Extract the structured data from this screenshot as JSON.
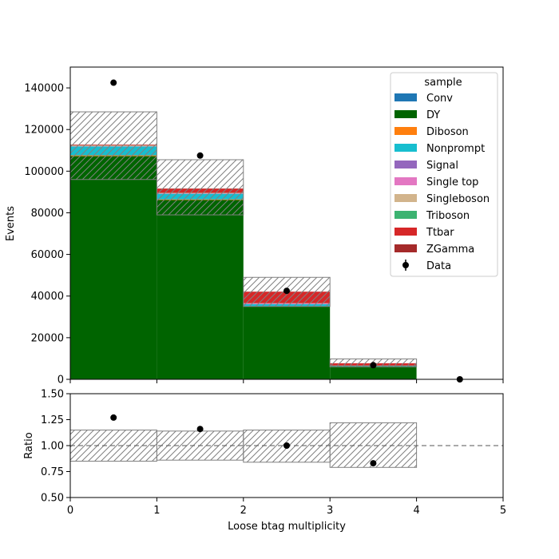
{
  "chart_data": [
    {
      "type": "bar",
      "stacked": true,
      "ylabel": "Events",
      "xlim": [
        0,
        5
      ],
      "ylim": [
        0,
        150000
      ],
      "yticks": [
        0,
        20000,
        40000,
        60000,
        80000,
        100000,
        120000,
        140000
      ],
      "bins": [
        [
          0,
          1
        ],
        [
          1,
          2
        ],
        [
          2,
          3
        ],
        [
          3,
          4
        ],
        [
          4,
          5
        ]
      ],
      "series": [
        {
          "name": "Conv",
          "color": "#1f77b4",
          "values": [
            200,
            150,
            100,
            20,
            0
          ]
        },
        {
          "name": "DY",
          "color": "#006400",
          "values": [
            107000,
            86000,
            34800,
            6300,
            0
          ]
        },
        {
          "name": "Diboson",
          "color": "#ff7f0e",
          "values": [
            400,
            300,
            150,
            30,
            0
          ]
        },
        {
          "name": "Nonprompt",
          "color": "#17becf",
          "values": [
            4300,
            2700,
            1100,
            200,
            0
          ]
        },
        {
          "name": "Signal",
          "color": "#9467bd",
          "values": [
            0,
            0,
            0,
            0,
            0
          ]
        },
        {
          "name": "Single top",
          "color": "#e377c2",
          "values": [
            100,
            200,
            300,
            50,
            0
          ]
        },
        {
          "name": "Singleboson",
          "color": "#d2b48c",
          "values": [
            300,
            200,
            100,
            10,
            0
          ]
        },
        {
          "name": "Triboson",
          "color": "#3cb371",
          "values": [
            50,
            40,
            20,
            5,
            0
          ]
        },
        {
          "name": "Ttbar",
          "color": "#d62728",
          "values": [
            300,
            2000,
            5500,
            1100,
            0
          ]
        },
        {
          "name": "ZGamma",
          "color": "#a52a2a",
          "values": [
            100,
            100,
            50,
            10,
            0
          ]
        }
      ],
      "uncertainty": {
        "up": [
          128500,
          105500,
          49000,
          9800,
          0
        ],
        "down": [
          96000,
          79000,
          35000,
          6000,
          0
        ]
      },
      "data": {
        "name": "Data",
        "x": [
          0.5,
          1.5,
          2.5,
          3.5,
          4.5
        ],
        "y": [
          142500,
          107500,
          42500,
          6800,
          0
        ]
      },
      "legend": {
        "title": "sample",
        "placement": "top-right"
      },
      "grid": false
    },
    {
      "type": "scatter",
      "xlabel": "Loose btag multiplicity",
      "ylabel": "Ratio",
      "xlim": [
        0,
        5
      ],
      "ylim": [
        0.5,
        1.5
      ],
      "xticks": [
        0,
        1,
        2,
        3,
        4,
        5
      ],
      "yticks": [
        0.5,
        0.75,
        1.0,
        1.25,
        1.5
      ],
      "ytick_labels": [
        "0.50",
        "0.75",
        "1.00",
        "1.25",
        "1.50"
      ],
      "reference_line": 1.0,
      "band": {
        "up": [
          1.15,
          1.14,
          1.15,
          1.22,
          1.0
        ],
        "down": [
          0.85,
          0.86,
          0.84,
          0.79,
          1.0
        ]
      },
      "points": {
        "x": [
          0.5,
          1.5,
          2.5,
          3.5
        ],
        "y": [
          1.27,
          1.16,
          1.0,
          0.83
        ]
      }
    }
  ]
}
